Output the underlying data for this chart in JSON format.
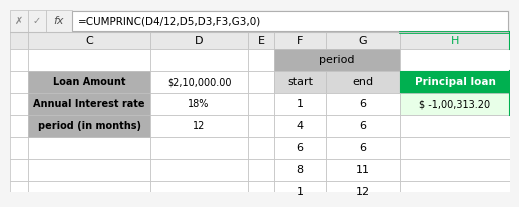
{
  "formula_bar": "=CUMPRINC(D4/12,D5,D3,F3,G3,0)",
  "left_table": {
    "rows": [
      {
        "label": "Loan Amount",
        "value": "$2,10,000.00"
      },
      {
        "label": "Annual Interest rate",
        "value": "18%"
      },
      {
        "label": "period (in months)",
        "value": "12"
      }
    ]
  },
  "period_header": "period",
  "period_header_bg": "#b0b0b0",
  "result_header": "Principal loan",
  "result_header_bg": "#00b050",
  "result_header_text": "#00b050",
  "right_table_rows": [
    {
      "start": "1",
      "end": "6",
      "result": "$ -1,00,313.20"
    },
    {
      "start": "4",
      "end": "6",
      "result": ""
    },
    {
      "start": "6",
      "end": "6",
      "result": ""
    },
    {
      "start": "8",
      "end": "11",
      "result": ""
    },
    {
      "start": "1",
      "end": "12",
      "result": ""
    }
  ],
  "grid_color": "#c0c0c0",
  "label_bg": "#b0b0b0",
  "sub_header_bg": "#d8d8d8",
  "col_header_bg": "#e8e8e8",
  "result_cell_bg": "#e8ffe8"
}
